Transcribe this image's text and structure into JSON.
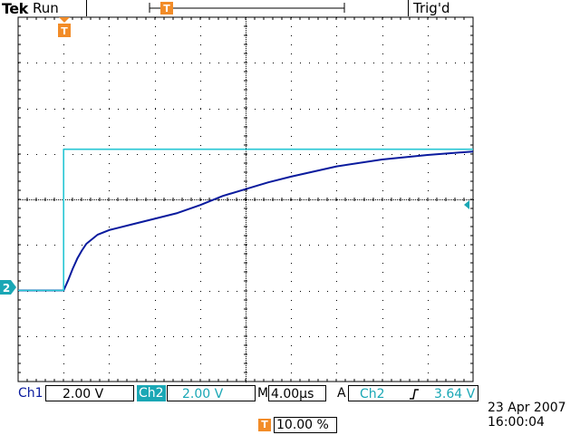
{
  "header": {
    "brand": "Tek",
    "run_state": "Run",
    "trigger_status": "Trig'd"
  },
  "colors": {
    "ch1": "#0a1b9e",
    "ch2": "#26c6d4",
    "trigger_marker": "#f28c28",
    "grid": "#000000"
  },
  "markers": {
    "trigger_badge": "T",
    "ch2_ground_badge": "2"
  },
  "readouts": {
    "ch1_label": "Ch1",
    "ch1_scale": "2.00 V",
    "ch2_label": "Ch2",
    "ch2_scale": "2.00 V",
    "timebase_label": "M",
    "timebase": "4.00µs",
    "trigger_mode": "A",
    "trigger_source": "Ch2",
    "trigger_slope_icon": "rising-edge-icon",
    "trigger_level": "3.64 V",
    "trigger_position_badge": "T",
    "trigger_position": "10.00 %",
    "date": "23 Apr  2007",
    "time": "16:00:04"
  },
  "chart_data": {
    "type": "line",
    "xlim": [
      -4,
      36
    ],
    "ylim": [
      -8,
      8
    ],
    "series": [
      {
        "name": "Ch1",
        "color": "#0a1b9e",
        "x": [
          -4,
          0,
          0.4,
          0.8,
          1.2,
          1.6,
          2.0,
          3.0,
          4.0,
          6.0,
          8.0,
          10.0,
          12.0,
          14.0,
          16.0,
          18.0,
          20.0,
          24.0,
          28.0,
          32.0,
          36.0
        ],
        "y": [
          -4.0,
          -4.0,
          -3.55,
          -3.05,
          -2.6,
          -2.25,
          -1.95,
          -1.55,
          -1.35,
          -1.1,
          -0.85,
          -0.6,
          -0.25,
          0.15,
          0.45,
          0.75,
          1.0,
          1.45,
          1.75,
          1.95,
          2.1
        ]
      },
      {
        "name": "Ch2",
        "color": "#26c6d4",
        "x": [
          -4,
          0,
          0,
          36
        ],
        "y": [
          -4.0,
          -4.0,
          2.2,
          2.2
        ]
      }
    ]
  }
}
